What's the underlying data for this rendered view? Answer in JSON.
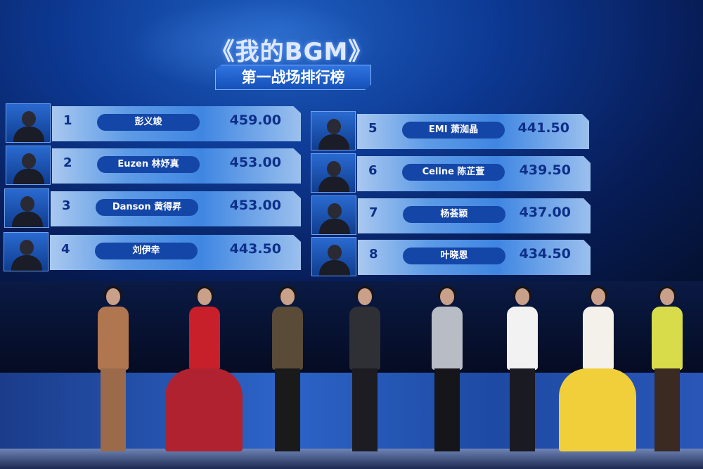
{
  "screen": {
    "title": "《我的BGM》",
    "subtitle": "第一战场排行榜",
    "ranking": [
      {
        "rank": "1",
        "name": "彭义竣",
        "score": "459.00"
      },
      {
        "rank": "2",
        "name": "Euzen 林妤真",
        "score": "453.00"
      },
      {
        "rank": "3",
        "name": "Danson 黄得昇",
        "score": "453.00"
      },
      {
        "rank": "4",
        "name": "刘伊幸",
        "score": "443.50"
      },
      {
        "rank": "5",
        "name": "EMI 萧洳晶",
        "score": "441.50"
      },
      {
        "rank": "6",
        "name": "Celine 陈芷萱",
        "score": "439.50"
      },
      {
        "rank": "7",
        "name": "杨荟颖",
        "score": "437.00"
      },
      {
        "rank": "8",
        "name": "叶晓恩",
        "score": "434.50"
      }
    ]
  },
  "colors": {
    "screen_blue": "#0d3a95",
    "bar_light": "#a9c8f0",
    "name_pill": "#1446a8",
    "text_dark": "#0d2f88"
  }
}
